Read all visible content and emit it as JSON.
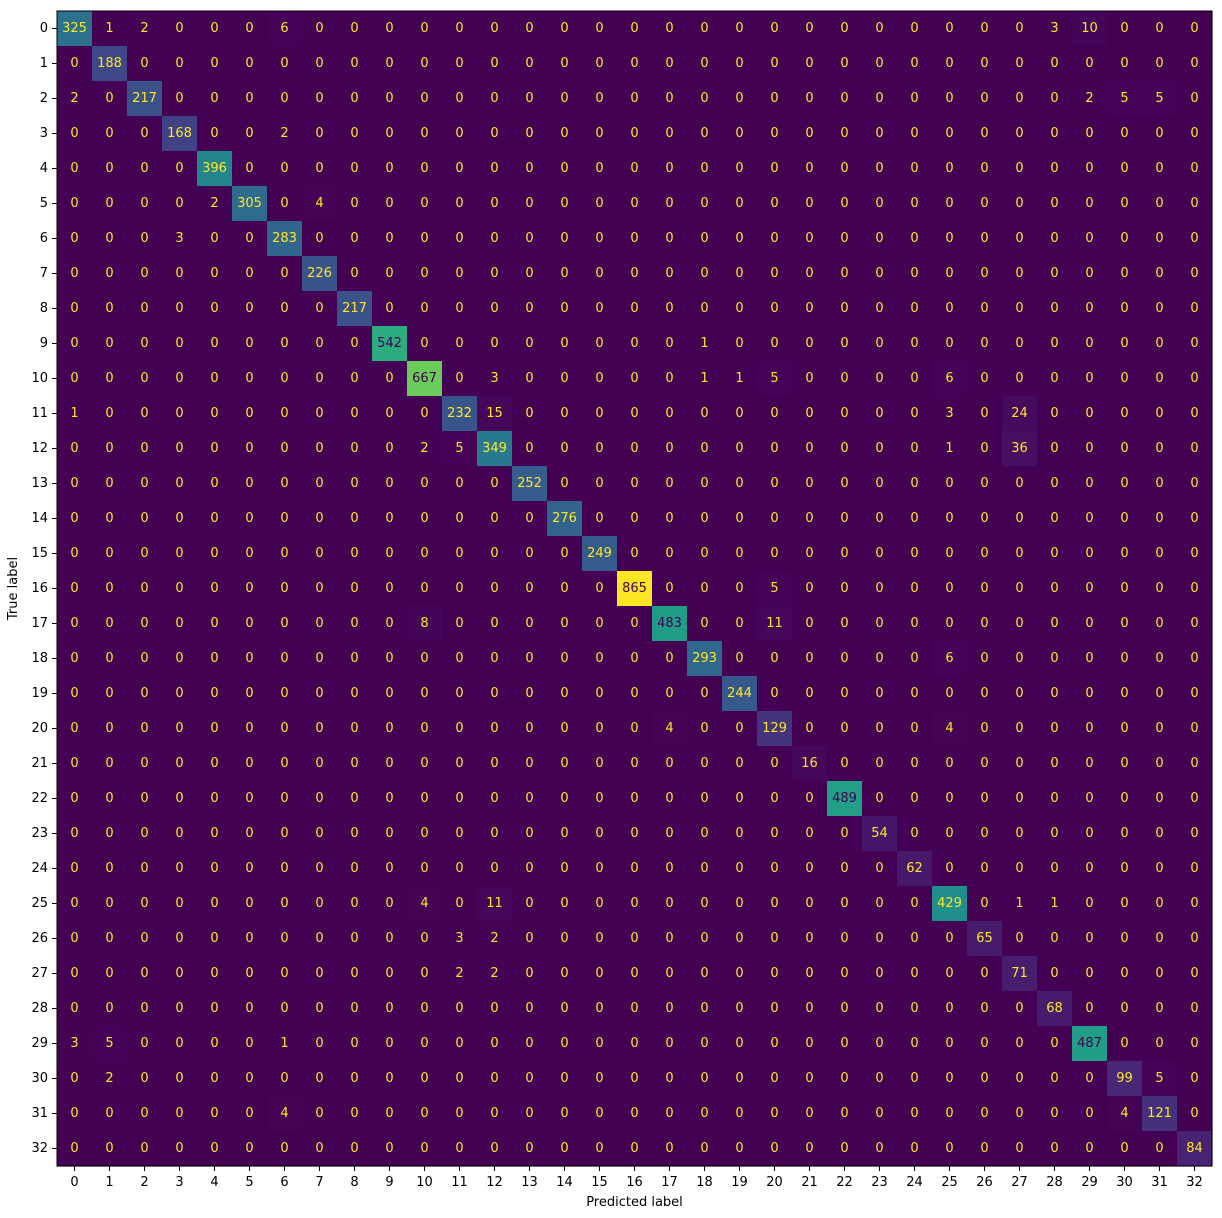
{
  "chart_data": {
    "type": "heatmap",
    "title": "",
    "xlabel": "Predicted label",
    "ylabel": "True label",
    "colormap": "viridis",
    "vmin": 0,
    "vmax": 865,
    "colorbar": false,
    "grid": false,
    "low_text_color": "#fde725",
    "high_text_color": "#440154",
    "x_categories": [
      "0",
      "1",
      "2",
      "3",
      "4",
      "5",
      "6",
      "7",
      "8",
      "9",
      "10",
      "11",
      "12",
      "13",
      "14",
      "15",
      "16",
      "17",
      "18",
      "19",
      "20",
      "21",
      "22",
      "23",
      "24",
      "25",
      "26",
      "27",
      "28",
      "29",
      "30",
      "31",
      "32"
    ],
    "y_categories": [
      "0",
      "1",
      "2",
      "3",
      "4",
      "5",
      "6",
      "7",
      "8",
      "9",
      "10",
      "11",
      "12",
      "13",
      "14",
      "15",
      "16",
      "17",
      "18",
      "19",
      "20",
      "21",
      "22",
      "23",
      "24",
      "25",
      "26",
      "27",
      "28",
      "29",
      "30",
      "31",
      "32"
    ],
    "matrix": [
      [
        325,
        1,
        2,
        0,
        0,
        0,
        6,
        0,
        0,
        0,
        0,
        0,
        0,
        0,
        0,
        0,
        0,
        0,
        0,
        0,
        0,
        0,
        0,
        0,
        0,
        0,
        0,
        0,
        3,
        10,
        0,
        0,
        0
      ],
      [
        0,
        188,
        0,
        0,
        0,
        0,
        0,
        0,
        0,
        0,
        0,
        0,
        0,
        0,
        0,
        0,
        0,
        0,
        0,
        0,
        0,
        0,
        0,
        0,
        0,
        0,
        0,
        0,
        0,
        0,
        0,
        0,
        0
      ],
      [
        2,
        0,
        217,
        0,
        0,
        0,
        0,
        0,
        0,
        0,
        0,
        0,
        0,
        0,
        0,
        0,
        0,
        0,
        0,
        0,
        0,
        0,
        0,
        0,
        0,
        0,
        0,
        0,
        0,
        2,
        5,
        5,
        0
      ],
      [
        0,
        0,
        0,
        168,
        0,
        0,
        2,
        0,
        0,
        0,
        0,
        0,
        0,
        0,
        0,
        0,
        0,
        0,
        0,
        0,
        0,
        0,
        0,
        0,
        0,
        0,
        0,
        0,
        0,
        0,
        0,
        0,
        0
      ],
      [
        0,
        0,
        0,
        0,
        396,
        0,
        0,
        0,
        0,
        0,
        0,
        0,
        0,
        0,
        0,
        0,
        0,
        0,
        0,
        0,
        0,
        0,
        0,
        0,
        0,
        0,
        0,
        0,
        0,
        0,
        0,
        0,
        0
      ],
      [
        0,
        0,
        0,
        0,
        2,
        305,
        0,
        4,
        0,
        0,
        0,
        0,
        0,
        0,
        0,
        0,
        0,
        0,
        0,
        0,
        0,
        0,
        0,
        0,
        0,
        0,
        0,
        0,
        0,
        0,
        0,
        0,
        0
      ],
      [
        0,
        0,
        0,
        3,
        0,
        0,
        283,
        0,
        0,
        0,
        0,
        0,
        0,
        0,
        0,
        0,
        0,
        0,
        0,
        0,
        0,
        0,
        0,
        0,
        0,
        0,
        0,
        0,
        0,
        0,
        0,
        0,
        0
      ],
      [
        0,
        0,
        0,
        0,
        0,
        0,
        0,
        226,
        0,
        0,
        0,
        0,
        0,
        0,
        0,
        0,
        0,
        0,
        0,
        0,
        0,
        0,
        0,
        0,
        0,
        0,
        0,
        0,
        0,
        0,
        0,
        0,
        0
      ],
      [
        0,
        0,
        0,
        0,
        0,
        0,
        0,
        0,
        217,
        0,
        0,
        0,
        0,
        0,
        0,
        0,
        0,
        0,
        0,
        0,
        0,
        0,
        0,
        0,
        0,
        0,
        0,
        0,
        0,
        0,
        0,
        0,
        0
      ],
      [
        0,
        0,
        0,
        0,
        0,
        0,
        0,
        0,
        0,
        542,
        0,
        0,
        0,
        0,
        0,
        0,
        0,
        0,
        1,
        0,
        0,
        0,
        0,
        0,
        0,
        0,
        0,
        0,
        0,
        0,
        0,
        0,
        0
      ],
      [
        0,
        0,
        0,
        0,
        0,
        0,
        0,
        0,
        0,
        0,
        667,
        0,
        3,
        0,
        0,
        0,
        0,
        0,
        1,
        1,
        5,
        0,
        0,
        0,
        0,
        6,
        0,
        0,
        0,
        0,
        0,
        0,
        0
      ],
      [
        1,
        0,
        0,
        0,
        0,
        0,
        0,
        0,
        0,
        0,
        0,
        232,
        15,
        0,
        0,
        0,
        0,
        0,
        0,
        0,
        0,
        0,
        0,
        0,
        0,
        3,
        0,
        24,
        0,
        0,
        0,
        0,
        0
      ],
      [
        0,
        0,
        0,
        0,
        0,
        0,
        0,
        0,
        0,
        0,
        2,
        5,
        349,
        0,
        0,
        0,
        0,
        0,
        0,
        0,
        0,
        0,
        0,
        0,
        0,
        1,
        0,
        36,
        0,
        0,
        0,
        0,
        0
      ],
      [
        0,
        0,
        0,
        0,
        0,
        0,
        0,
        0,
        0,
        0,
        0,
        0,
        0,
        252,
        0,
        0,
        0,
        0,
        0,
        0,
        0,
        0,
        0,
        0,
        0,
        0,
        0,
        0,
        0,
        0,
        0,
        0,
        0
      ],
      [
        0,
        0,
        0,
        0,
        0,
        0,
        0,
        0,
        0,
        0,
        0,
        0,
        0,
        0,
        276,
        0,
        0,
        0,
        0,
        0,
        0,
        0,
        0,
        0,
        0,
        0,
        0,
        0,
        0,
        0,
        0,
        0,
        0
      ],
      [
        0,
        0,
        0,
        0,
        0,
        0,
        0,
        0,
        0,
        0,
        0,
        0,
        0,
        0,
        0,
        249,
        0,
        0,
        0,
        0,
        0,
        0,
        0,
        0,
        0,
        0,
        0,
        0,
        0,
        0,
        0,
        0,
        0
      ],
      [
        0,
        0,
        0,
        0,
        0,
        0,
        0,
        0,
        0,
        0,
        0,
        0,
        0,
        0,
        0,
        0,
        865,
        0,
        0,
        0,
        5,
        0,
        0,
        0,
        0,
        0,
        0,
        0,
        0,
        0,
        0,
        0,
        0
      ],
      [
        0,
        0,
        0,
        0,
        0,
        0,
        0,
        0,
        0,
        0,
        8,
        0,
        0,
        0,
        0,
        0,
        0,
        483,
        0,
        0,
        11,
        0,
        0,
        0,
        0,
        0,
        0,
        0,
        0,
        0,
        0,
        0,
        0
      ],
      [
        0,
        0,
        0,
        0,
        0,
        0,
        0,
        0,
        0,
        0,
        0,
        0,
        0,
        0,
        0,
        0,
        0,
        0,
        293,
        0,
        0,
        0,
        0,
        0,
        0,
        6,
        0,
        0,
        0,
        0,
        0,
        0,
        0
      ],
      [
        0,
        0,
        0,
        0,
        0,
        0,
        0,
        0,
        0,
        0,
        0,
        0,
        0,
        0,
        0,
        0,
        0,
        0,
        0,
        244,
        0,
        0,
        0,
        0,
        0,
        0,
        0,
        0,
        0,
        0,
        0,
        0,
        0
      ],
      [
        0,
        0,
        0,
        0,
        0,
        0,
        0,
        0,
        0,
        0,
        0,
        0,
        0,
        0,
        0,
        0,
        0,
        4,
        0,
        0,
        129,
        0,
        0,
        0,
        0,
        4,
        0,
        0,
        0,
        0,
        0,
        0,
        0
      ],
      [
        0,
        0,
        0,
        0,
        0,
        0,
        0,
        0,
        0,
        0,
        0,
        0,
        0,
        0,
        0,
        0,
        0,
        0,
        0,
        0,
        0,
        16,
        0,
        0,
        0,
        0,
        0,
        0,
        0,
        0,
        0,
        0,
        0
      ],
      [
        0,
        0,
        0,
        0,
        0,
        0,
        0,
        0,
        0,
        0,
        0,
        0,
        0,
        0,
        0,
        0,
        0,
        0,
        0,
        0,
        0,
        0,
        489,
        0,
        0,
        0,
        0,
        0,
        0,
        0,
        0,
        0,
        0
      ],
      [
        0,
        0,
        0,
        0,
        0,
        0,
        0,
        0,
        0,
        0,
        0,
        0,
        0,
        0,
        0,
        0,
        0,
        0,
        0,
        0,
        0,
        0,
        0,
        54,
        0,
        0,
        0,
        0,
        0,
        0,
        0,
        0,
        0
      ],
      [
        0,
        0,
        0,
        0,
        0,
        0,
        0,
        0,
        0,
        0,
        0,
        0,
        0,
        0,
        0,
        0,
        0,
        0,
        0,
        0,
        0,
        0,
        0,
        0,
        62,
        0,
        0,
        0,
        0,
        0,
        0,
        0,
        0
      ],
      [
        0,
        0,
        0,
        0,
        0,
        0,
        0,
        0,
        0,
        0,
        4,
        0,
        11,
        0,
        0,
        0,
        0,
        0,
        0,
        0,
        0,
        0,
        0,
        0,
        0,
        429,
        0,
        1,
        1,
        0,
        0,
        0,
        0
      ],
      [
        0,
        0,
        0,
        0,
        0,
        0,
        0,
        0,
        0,
        0,
        0,
        3,
        2,
        0,
        0,
        0,
        0,
        0,
        0,
        0,
        0,
        0,
        0,
        0,
        0,
        0,
        65,
        0,
        0,
        0,
        0,
        0,
        0
      ],
      [
        0,
        0,
        0,
        0,
        0,
        0,
        0,
        0,
        0,
        0,
        0,
        2,
        2,
        0,
        0,
        0,
        0,
        0,
        0,
        0,
        0,
        0,
        0,
        0,
        0,
        0,
        0,
        71,
        0,
        0,
        0,
        0,
        0
      ],
      [
        0,
        0,
        0,
        0,
        0,
        0,
        0,
        0,
        0,
        0,
        0,
        0,
        0,
        0,
        0,
        0,
        0,
        0,
        0,
        0,
        0,
        0,
        0,
        0,
        0,
        0,
        0,
        0,
        68,
        0,
        0,
        0,
        0
      ],
      [
        3,
        5,
        0,
        0,
        0,
        0,
        1,
        0,
        0,
        0,
        0,
        0,
        0,
        0,
        0,
        0,
        0,
        0,
        0,
        0,
        0,
        0,
        0,
        0,
        0,
        0,
        0,
        0,
        0,
        487,
        0,
        0,
        0
      ],
      [
        0,
        2,
        0,
        0,
        0,
        0,
        0,
        0,
        0,
        0,
        0,
        0,
        0,
        0,
        0,
        0,
        0,
        0,
        0,
        0,
        0,
        0,
        0,
        0,
        0,
        0,
        0,
        0,
        0,
        0,
        99,
        5,
        0
      ],
      [
        0,
        0,
        0,
        0,
        0,
        0,
        4,
        0,
        0,
        0,
        0,
        0,
        0,
        0,
        0,
        0,
        0,
        0,
        0,
        0,
        0,
        0,
        0,
        0,
        0,
        0,
        0,
        0,
        0,
        0,
        4,
        121,
        0
      ],
      [
        0,
        0,
        0,
        0,
        0,
        0,
        0,
        0,
        0,
        0,
        0,
        0,
        0,
        0,
        0,
        0,
        0,
        0,
        0,
        0,
        0,
        0,
        0,
        0,
        0,
        0,
        0,
        0,
        0,
        0,
        0,
        0,
        84
      ]
    ]
  }
}
